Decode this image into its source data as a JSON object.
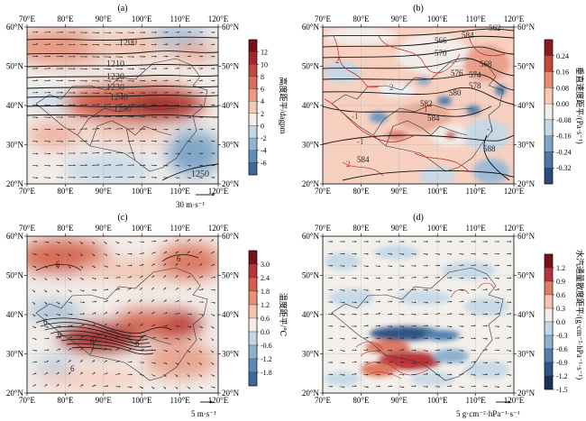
{
  "figure": {
    "panels": [
      {
        "id": "a",
        "label": "(a)",
        "vector_label": "30 m·s⁻¹",
        "colorbar": {
          "title": "高度距平/dagpm",
          "ticks": [
            12,
            10,
            8,
            6,
            4,
            2,
            0,
            -2,
            -4,
            -6
          ],
          "colors": [
            "#7a0f1c",
            "#a3262b",
            "#c4463f",
            "#da6f5c",
            "#eb9a84",
            "#f6c8b5",
            "#f5efea",
            "#c4d7e5",
            "#92b6d1",
            "#5f8eb7",
            "#3a6a9c"
          ]
        },
        "contour_labels": [
          "1200",
          "1210",
          "1220",
          "1230",
          "1240",
          "1250",
          "1250"
        ]
      },
      {
        "id": "b",
        "label": "(b)",
        "colorbar": {
          "title": "垂直速度距平/(Pa·s⁻¹)",
          "ticks": [
            0.24,
            0.16,
            0.08,
            0,
            -0.08,
            -0.16,
            -0.24,
            -0.32
          ],
          "colors": [
            "#8a1b1f",
            "#c24838",
            "#e68c72",
            "#f8c9b4",
            "#f1eeec",
            "#c4d7e5",
            "#7ea6c8",
            "#4a79a8",
            "#2a4a7a"
          ]
        },
        "contour_labels": [
          "562",
          "566",
          "584",
          "570",
          "568",
          "576",
          "574",
          "578",
          "580",
          "582",
          "584",
          "588",
          "584"
        ],
        "red_contour_labels": [
          "2",
          "2",
          "-1",
          "-1",
          "2",
          "1",
          "-1"
        ]
      },
      {
        "id": "c",
        "label": "(c)",
        "vector_label": "5 m·s⁻¹",
        "colorbar": {
          "title": "温度距平/℃",
          "ticks": [
            3.0,
            2.4,
            1.8,
            1.2,
            0.6,
            0,
            -0.6,
            -1.2,
            -1.8
          ],
          "colors": [
            "#7a0f1c",
            "#b8343a",
            "#d65d4d",
            "#ec8f74",
            "#f7c3ad",
            "#f2ede9",
            "#c4d7e5",
            "#8cb2d0",
            "#5b8ab5",
            "#3a6a9c"
          ]
        },
        "contour_labels": [
          "6",
          "6",
          "6",
          "6",
          "6",
          "6",
          "6"
        ]
      },
      {
        "id": "d",
        "label": "(d)",
        "vector_label": "5 g·cm⁻²·hPa⁻¹·s⁻¹",
        "colorbar": {
          "title": "水汽通量散度距平/(g·cm⁻²·hPa⁻¹·s⁻¹)",
          "ticks": [
            1.2,
            0.9,
            0.6,
            0.3,
            0,
            -0.3,
            -0.6,
            -0.9,
            -1.2,
            -1.5
          ],
          "colors": [
            "#7a0f1c",
            "#b8343a",
            "#de7c64",
            "#f5c3ae",
            "#f2ede9",
            "#c2d6e5",
            "#8cb2d0",
            "#5280ad",
            "#2e5585",
            "#1d2f55"
          ]
        }
      }
    ],
    "lon_ticks": [
      "70°E",
      "80°E",
      "90°E",
      "100°E",
      "110°E",
      "120°E"
    ],
    "lat_ticks": [
      "60°N",
      "50°N",
      "40°N",
      "30°N",
      "20°N"
    ],
    "colors": {
      "frame": "#000000",
      "china_border": "#333333",
      "blue_contour": "#1a1a1a",
      "red_contour": "#c8202a"
    }
  },
  "chart_data": [
    {
      "type": "heatmap",
      "panel": "a",
      "title": "(a)",
      "xlim": [
        70,
        120
      ],
      "ylim": [
        20,
        60
      ],
      "colorbar_label": "高度距平/dagpm",
      "colorbar_range": [
        -6,
        12
      ],
      "anomaly_centers": [
        {
          "lon": 105,
          "lat": 40,
          "value": 12
        },
        {
          "lon": 80,
          "lat": 53,
          "value": 4
        },
        {
          "lon": 112,
          "lat": 25,
          "value": -4
        }
      ],
      "contours": [
        1200,
        1210,
        1220,
        1230,
        1240,
        1250
      ]
    },
    {
      "type": "heatmap",
      "panel": "b",
      "title": "(b)",
      "xlim": [
        70,
        120
      ],
      "ylim": [
        20,
        60
      ],
      "colorbar_label": "垂直速度距平/(Pa·s⁻¹)",
      "colorbar_range": [
        -0.32,
        0.24
      ],
      "contours": [
        562,
        566,
        568,
        570,
        574,
        576,
        578,
        580,
        582,
        584,
        588
      ]
    },
    {
      "type": "heatmap",
      "panel": "c",
      "title": "(c)",
      "xlim": [
        70,
        120
      ],
      "ylim": [
        20,
        60
      ],
      "colorbar_label": "温度距平/℃",
      "colorbar_range": [
        -1.8,
        3.0
      ],
      "anomaly_centers": [
        {
          "lon": 92,
          "lat": 35,
          "value": 3.0
        },
        {
          "lon": 108,
          "lat": 38,
          "value": 2.4
        },
        {
          "lon": 100,
          "lat": 55,
          "value": 2.4
        }
      ],
      "contours": [
        6
      ]
    },
    {
      "type": "heatmap",
      "panel": "d",
      "title": "(d)",
      "xlim": [
        70,
        120
      ],
      "ylim": [
        20,
        60
      ],
      "colorbar_label": "水汽通量散度距平/(g·cm⁻²·hPa⁻¹·s⁻¹)",
      "colorbar_range": [
        -1.5,
        1.2
      ],
      "anomaly_centers": [
        {
          "lon": 95,
          "lat": 36,
          "value": -1.2
        },
        {
          "lon": 92,
          "lat": 32,
          "value": 1.2
        }
      ]
    }
  ]
}
